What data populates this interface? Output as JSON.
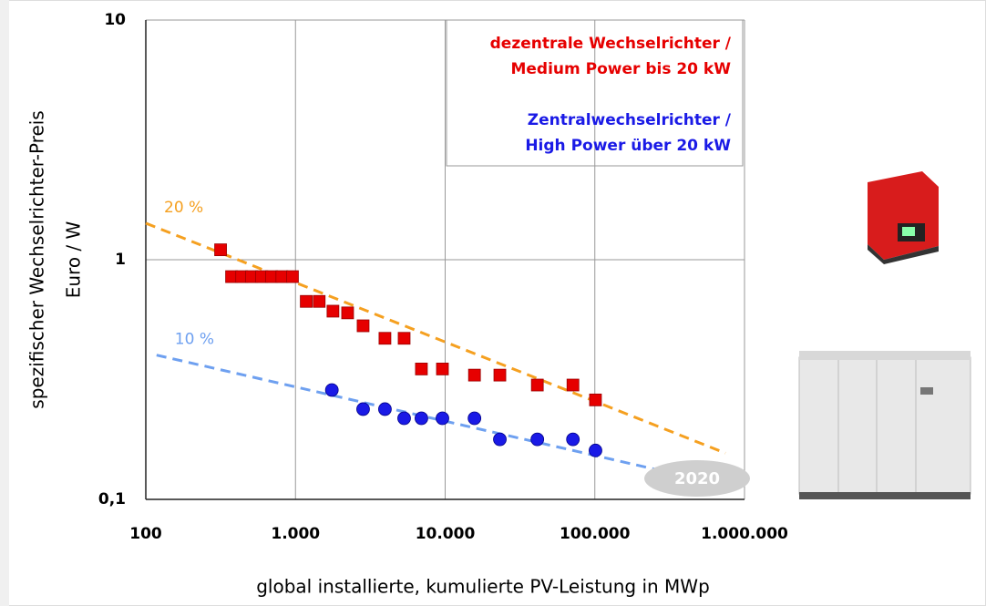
{
  "chart_data": {
    "type": "scatter",
    "x_label": "global installierte, kumulierte PV-Leistung in MWp",
    "y_label": "spezifischer Wechselrichter-Preis",
    "y_unit": "Euro / W",
    "log_x": true,
    "log_y": true,
    "grid": true,
    "xlim": [
      100,
      1000000
    ],
    "xticks": [
      100,
      {
        "value": 1000,
        "label": "1.000"
      },
      {
        "value": 10000,
        "label": "10.000"
      },
      {
        "value": 100000,
        "label": "100.000"
      },
      {
        "value": 1000000,
        "label": "1.000.000"
      }
    ],
    "ylim": [
      0.1,
      10
    ],
    "yticks": [
      {
        "value": 0.1,
        "label": "0,1"
      },
      1,
      10
    ],
    "series": [
      {
        "name": "dezentrale Wechselrichter /\nMedium Power bis 20 kW",
        "color": "#e60000",
        "marker": "square",
        "x": [
          316,
          374,
          437,
          509,
          594,
          693,
          811,
          955,
          1180,
          1440,
          1780,
          2230,
          2830,
          3960,
          5320,
          6940,
          9590,
          15700,
          23200,
          41300,
          71400,
          101000
        ],
        "values": [
          1.1,
          0.85,
          0.85,
          0.85,
          0.85,
          0.85,
          0.85,
          0.85,
          0.67,
          0.67,
          0.61,
          0.6,
          0.53,
          0.47,
          0.47,
          0.35,
          0.35,
          0.33,
          0.33,
          0.3,
          0.3,
          0.26
        ]
      },
      {
        "name": "Zentralwechselrichter /\nHigh Power über 20 kW",
        "color": "#1a1ae6",
        "marker": "circle",
        "x": [
          1750,
          2830,
          3960,
          5320,
          6940,
          9590,
          15700,
          23200,
          41300,
          71400,
          101000
        ],
        "values": [
          0.286,
          0.238,
          0.238,
          0.218,
          0.218,
          0.218,
          0.218,
          0.178,
          0.178,
          0.178,
          0.16
        ]
      }
    ],
    "trend_lines": [
      {
        "label": "20 %",
        "color": "#f5a020",
        "x": [
          100,
          745000
        ],
        "values": [
          1.42,
          0.156
        ]
      },
      {
        "label": "10 %",
        "color": "#6ea0f0",
        "x": [
          118,
          260000
        ],
        "values": [
          0.4,
          0.133
        ]
      }
    ],
    "annotation": "2020"
  }
}
